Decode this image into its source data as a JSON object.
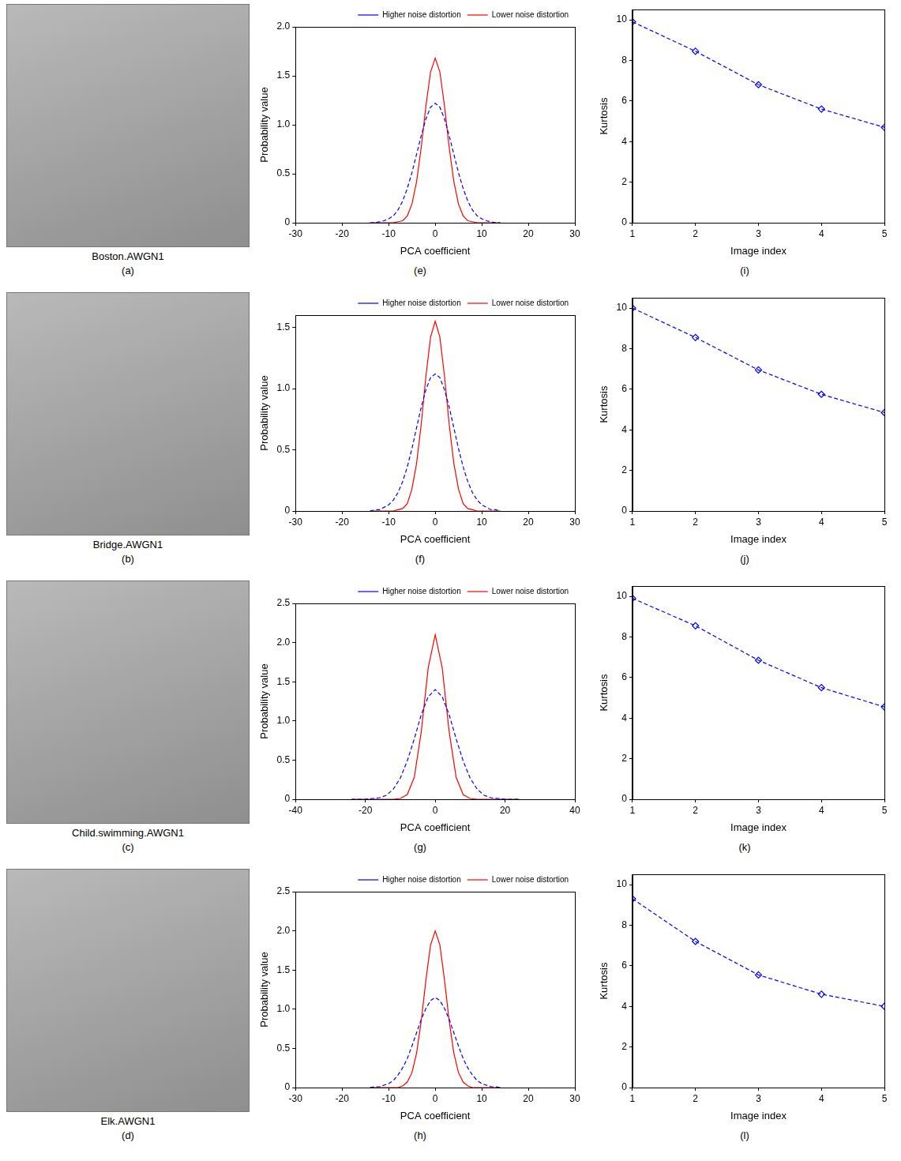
{
  "images": [
    {
      "caption": "Boston.AWGN1",
      "label": "(a)"
    },
    {
      "caption": "Bridge.AWGN1",
      "label": "(b)"
    },
    {
      "caption": "Child.swimming.AWGN1",
      "label": "(c)"
    },
    {
      "caption": "Elk.AWGN1",
      "label": "(d)"
    }
  ],
  "chart_data": [
    {
      "type": "line",
      "label": "(e)",
      "x_label": "PCA coefficient",
      "y_label": "Probability value",
      "x": [
        -14,
        -13,
        -12,
        -11,
        -10,
        -9,
        -8,
        -7,
        -6,
        -5,
        -4,
        -3,
        -2,
        -1,
        0,
        1,
        2,
        3,
        4,
        5,
        6,
        7,
        8,
        9,
        10,
        11,
        12,
        13,
        14
      ],
      "series": [
        {
          "name": "Higher noise distortion",
          "color": "#0000ff",
          "line_style": "dashed",
          "values": [
            0,
            0,
            0.01,
            0.02,
            0.04,
            0.07,
            0.13,
            0.22,
            0.35,
            0.51,
            0.7,
            0.89,
            1.06,
            1.18,
            1.22,
            1.18,
            1.06,
            0.89,
            0.7,
            0.51,
            0.35,
            0.22,
            0.13,
            0.07,
            0.04,
            0.02,
            0.01,
            0,
            0
          ]
        },
        {
          "name": "Lower noise distortion",
          "color": "#ff0000",
          "line_style": "solid",
          "values": [
            0,
            0,
            0,
            0,
            0,
            0,
            0.01,
            0.02,
            0.07,
            0.19,
            0.42,
            0.77,
            1.19,
            1.54,
            1.68,
            1.54,
            1.19,
            0.77,
            0.42,
            0.19,
            0.07,
            0.02,
            0.01,
            0,
            0,
            0,
            0,
            0,
            0
          ]
        }
      ],
      "xlim": [
        -30,
        30
      ],
      "xticks": [
        -30,
        -20,
        -10,
        0,
        10,
        20,
        30
      ],
      "ylim": [
        0,
        2
      ],
      "yticks": [
        0,
        0.5,
        {
          "value": 1,
          "label": "1.0"
        },
        1.5,
        {
          "value": 2,
          "label": "2.0"
        }
      ],
      "grid": false,
      "legend": "top"
    },
    {
      "type": "line",
      "label": "(f)",
      "x_label": "PCA coefficient",
      "y_label": "Probability value",
      "x": [
        -14,
        -13,
        -12,
        -11,
        -10,
        -9,
        -8,
        -7,
        -6,
        -5,
        -4,
        -3,
        -2,
        -1,
        0,
        1,
        2,
        3,
        4,
        5,
        6,
        7,
        8,
        9,
        10,
        11,
        12,
        13,
        14
      ],
      "series": [
        {
          "name": "Higher noise distortion",
          "color": "#0000ff",
          "line_style": "dashed",
          "values": [
            0,
            0.01,
            0.01,
            0.03,
            0.05,
            0.09,
            0.15,
            0.24,
            0.36,
            0.51,
            0.68,
            0.85,
            0.99,
            1.09,
            1.12,
            1.09,
            0.99,
            0.85,
            0.68,
            0.51,
            0.36,
            0.24,
            0.15,
            0.09,
            0.05,
            0.03,
            0.01,
            0.01,
            0
          ]
        },
        {
          "name": "Lower noise distortion",
          "color": "#ff0000",
          "line_style": "solid",
          "values": [
            0,
            0,
            0,
            0,
            0,
            0,
            0.01,
            0.02,
            0.06,
            0.18,
            0.39,
            0.71,
            1.1,
            1.42,
            1.55,
            1.42,
            1.1,
            0.71,
            0.39,
            0.18,
            0.06,
            0.02,
            0.01,
            0,
            0,
            0,
            0,
            0,
            0
          ]
        }
      ],
      "xlim": [
        -30,
        30
      ],
      "xticks": [
        -30,
        -20,
        -10,
        0,
        10,
        20,
        30
      ],
      "ylim": [
        0,
        1.6
      ],
      "yticks": [
        0,
        0.5,
        {
          "value": 1,
          "label": "1.0"
        },
        1.5
      ],
      "grid": false,
      "legend": "top"
    },
    {
      "type": "line",
      "label": "(g)",
      "x_label": "PCA coefficient",
      "y_label": "Probability value",
      "x": [
        -24,
        -22,
        -20,
        -18,
        -16,
        -14,
        -12,
        -10,
        -8,
        -6,
        -4,
        -2,
        0,
        2,
        4,
        6,
        8,
        10,
        12,
        14,
        16,
        18,
        20,
        22,
        24
      ],
      "series": [
        {
          "name": "Higher noise distortion",
          "color": "#0000ff",
          "line_style": "dashed",
          "values": [
            0,
            0,
            0,
            0.01,
            0.02,
            0.05,
            0.13,
            0.27,
            0.49,
            0.77,
            1.08,
            1.31,
            1.4,
            1.31,
            1.08,
            0.77,
            0.49,
            0.27,
            0.13,
            0.05,
            0.02,
            0.01,
            0,
            0,
            0
          ]
        },
        {
          "name": "Lower noise distortion",
          "color": "#ff0000",
          "line_style": "solid",
          "values": [
            0,
            0,
            0,
            0,
            0,
            0,
            0,
            0.01,
            0.06,
            0.28,
            0.86,
            1.68,
            2.1,
            1.68,
            0.86,
            0.28,
            0.06,
            0.01,
            0,
            0,
            0,
            0,
            0,
            0,
            0
          ]
        }
      ],
      "xlim": [
        -40,
        40
      ],
      "xticks": [
        -40,
        -20,
        0,
        20,
        40
      ],
      "ylim": [
        0,
        2.5
      ],
      "yticks": [
        0,
        0.5,
        {
          "value": 1,
          "label": "1.0"
        },
        1.5,
        {
          "value": 2,
          "label": "2.0"
        },
        2.5
      ],
      "grid": false,
      "legend": "top"
    },
    {
      "type": "line",
      "label": "(h)",
      "x_label": "PCA coefficient",
      "y_label": "Probability value",
      "x": [
        -14,
        -13,
        -12,
        -11,
        -10,
        -9,
        -8,
        -7,
        -6,
        -5,
        -4,
        -3,
        -2,
        -1,
        0,
        1,
        2,
        3,
        4,
        5,
        6,
        7,
        8,
        9,
        10,
        11,
        12,
        13,
        14
      ],
      "series": [
        {
          "name": "Higher noise distortion",
          "color": "#0000ff",
          "line_style": "dashed",
          "values": [
            0,
            0.01,
            0.01,
            0.03,
            0.05,
            0.09,
            0.16,
            0.25,
            0.37,
            0.53,
            0.7,
            0.87,
            1.01,
            1.11,
            1.15,
            1.11,
            1.01,
            0.87,
            0.7,
            0.53,
            0.37,
            0.25,
            0.16,
            0.09,
            0.05,
            0.03,
            0.01,
            0.01,
            0
          ]
        },
        {
          "name": "Lower noise distortion",
          "color": "#ff0000",
          "line_style": "solid",
          "values": [
            0,
            0,
            0,
            0,
            0,
            0,
            0,
            0.02,
            0.07,
            0.19,
            0.44,
            0.85,
            1.37,
            1.82,
            2.0,
            1.82,
            1.37,
            0.85,
            0.44,
            0.19,
            0.07,
            0.02,
            0,
            0,
            0,
            0,
            0,
            0,
            0
          ]
        }
      ],
      "xlim": [
        -30,
        30
      ],
      "xticks": [
        -30,
        -20,
        -10,
        0,
        10,
        20,
        30
      ],
      "ylim": [
        0,
        2.5
      ],
      "yticks": [
        0,
        0.5,
        {
          "value": 1,
          "label": "1.0"
        },
        1.5,
        {
          "value": 2,
          "label": "2.0"
        },
        2.5
      ],
      "grid": false,
      "legend": "top"
    },
    {
      "type": "line",
      "label": "(i)",
      "x_label": "Image index",
      "y_label": "Kurtosis",
      "x": [
        1,
        2,
        3,
        4,
        5
      ],
      "values": [
        9.9,
        8.45,
        6.8,
        5.6,
        4.7
      ],
      "color": "#0000ff",
      "line_style": "dashed",
      "marker": "diamond",
      "xlim": [
        1,
        5
      ],
      "xticks": [
        1,
        2,
        3,
        4,
        5
      ],
      "ylim": [
        0,
        10.5
      ],
      "yticks": [
        0,
        2,
        4,
        6,
        8,
        10
      ],
      "grid": false
    },
    {
      "type": "line",
      "label": "(j)",
      "x_label": "Image index",
      "y_label": "Kurtosis",
      "x": [
        1,
        2,
        3,
        4,
        5
      ],
      "values": [
        10.0,
        8.55,
        6.95,
        5.75,
        4.85
      ],
      "color": "#0000ff",
      "line_style": "dashed",
      "marker": "diamond",
      "xlim": [
        1,
        5
      ],
      "xticks": [
        1,
        2,
        3,
        4,
        5
      ],
      "ylim": [
        0,
        10.5
      ],
      "yticks": [
        0,
        2,
        4,
        6,
        8,
        10
      ],
      "grid": false
    },
    {
      "type": "line",
      "label": "(k)",
      "x_label": "Image index",
      "y_label": "Kurtosis",
      "x": [
        1,
        2,
        3,
        4,
        5
      ],
      "values": [
        9.9,
        8.55,
        6.85,
        5.5,
        4.55
      ],
      "color": "#0000ff",
      "line_style": "dashed",
      "marker": "diamond",
      "xlim": [
        1,
        5
      ],
      "xticks": [
        1,
        2,
        3,
        4,
        5
      ],
      "ylim": [
        0,
        10.5
      ],
      "yticks": [
        0,
        2,
        4,
        6,
        8,
        10
      ],
      "grid": false
    },
    {
      "type": "line",
      "label": "(l)",
      "x_label": "Image index",
      "y_label": "Kurtosis",
      "x": [
        1,
        2,
        3,
        4,
        5
      ],
      "values": [
        9.3,
        7.2,
        5.55,
        4.6,
        4.0
      ],
      "color": "#0000ff",
      "line_style": "dashed",
      "marker": "diamond",
      "xlim": [
        1,
        5
      ],
      "xticks": [
        1,
        2,
        3,
        4,
        5
      ],
      "ylim": [
        0,
        10.5
      ],
      "yticks": [
        0,
        2,
        4,
        6,
        8,
        10
      ],
      "grid": false
    }
  ]
}
